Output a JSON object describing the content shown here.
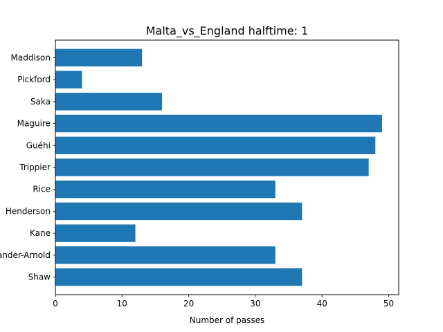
{
  "chart_data": {
    "type": "bar",
    "orientation": "horizontal",
    "title": "Malta_vs_England halftime: 1",
    "xlabel": "Number of passes",
    "ylabel": "",
    "xlim": [
      0,
      51.5
    ],
    "xticks": [
      0,
      10,
      20,
      30,
      40,
      50
    ],
    "categories": [
      "Maddison",
      "Pickford",
      "Saka",
      "Maguire",
      "Guéhi",
      "Trippier",
      "Rice",
      "Henderson",
      "Kane",
      "Alexander-Arnold",
      "Shaw"
    ],
    "values": [
      13,
      4,
      16,
      49,
      48,
      47,
      33,
      37,
      12,
      33,
      37
    ],
    "bar_color": "#1f77b4",
    "grid": false,
    "legend": "none"
  }
}
